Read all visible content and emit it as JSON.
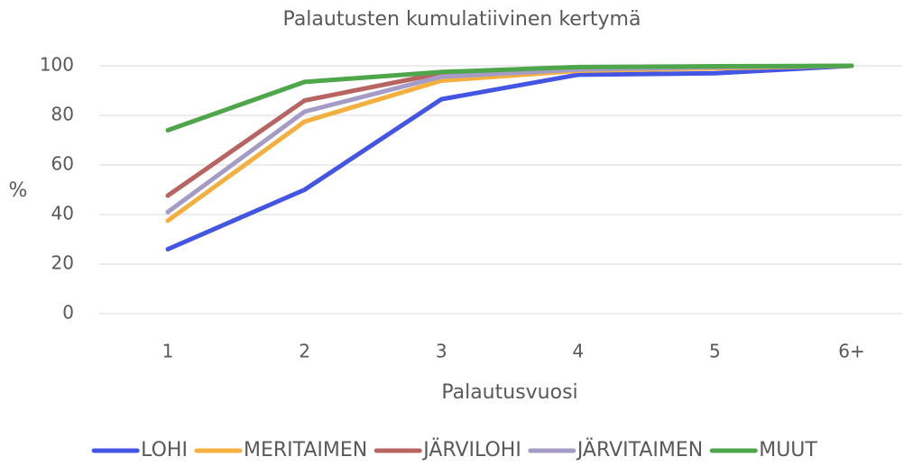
{
  "chart_data": {
    "type": "line",
    "title": "Palautusten kumulatiivinen kertymä",
    "x_label": "Palautusvuosi",
    "y_label": "%",
    "categories": [
      "1",
      "2",
      "3",
      "4",
      "5",
      "6+"
    ],
    "series": [
      {
        "name": "LOHI",
        "color": "#4355e3",
        "values": [
          26,
          50,
          86.5,
          96.4,
          97,
          100
        ]
      },
      {
        "name": "MERITAIMEN",
        "color": "#f4b03e",
        "values": [
          37.5,
          77.5,
          94,
          98,
          99,
          100
        ]
      },
      {
        "name": "JÄRVILOHI",
        "color": "#b86461",
        "values": [
          47.6,
          86,
          97,
          99,
          99.5,
          100
        ]
      },
      {
        "name": "JÄRVITAIMEN",
        "color": "#a49cc6",
        "values": [
          41,
          81.5,
          95.6,
          98.5,
          99.5,
          100
        ]
      },
      {
        "name": "MUUT",
        "color": "#4da64a",
        "values": [
          74,
          93.5,
          97.5,
          99.5,
          99.8,
          100
        ]
      }
    ],
    "ylim": [
      0,
      100
    ],
    "yticks": [
      0,
      20,
      40,
      60,
      80,
      100
    ],
    "grid": true,
    "legend": "bottom"
  }
}
